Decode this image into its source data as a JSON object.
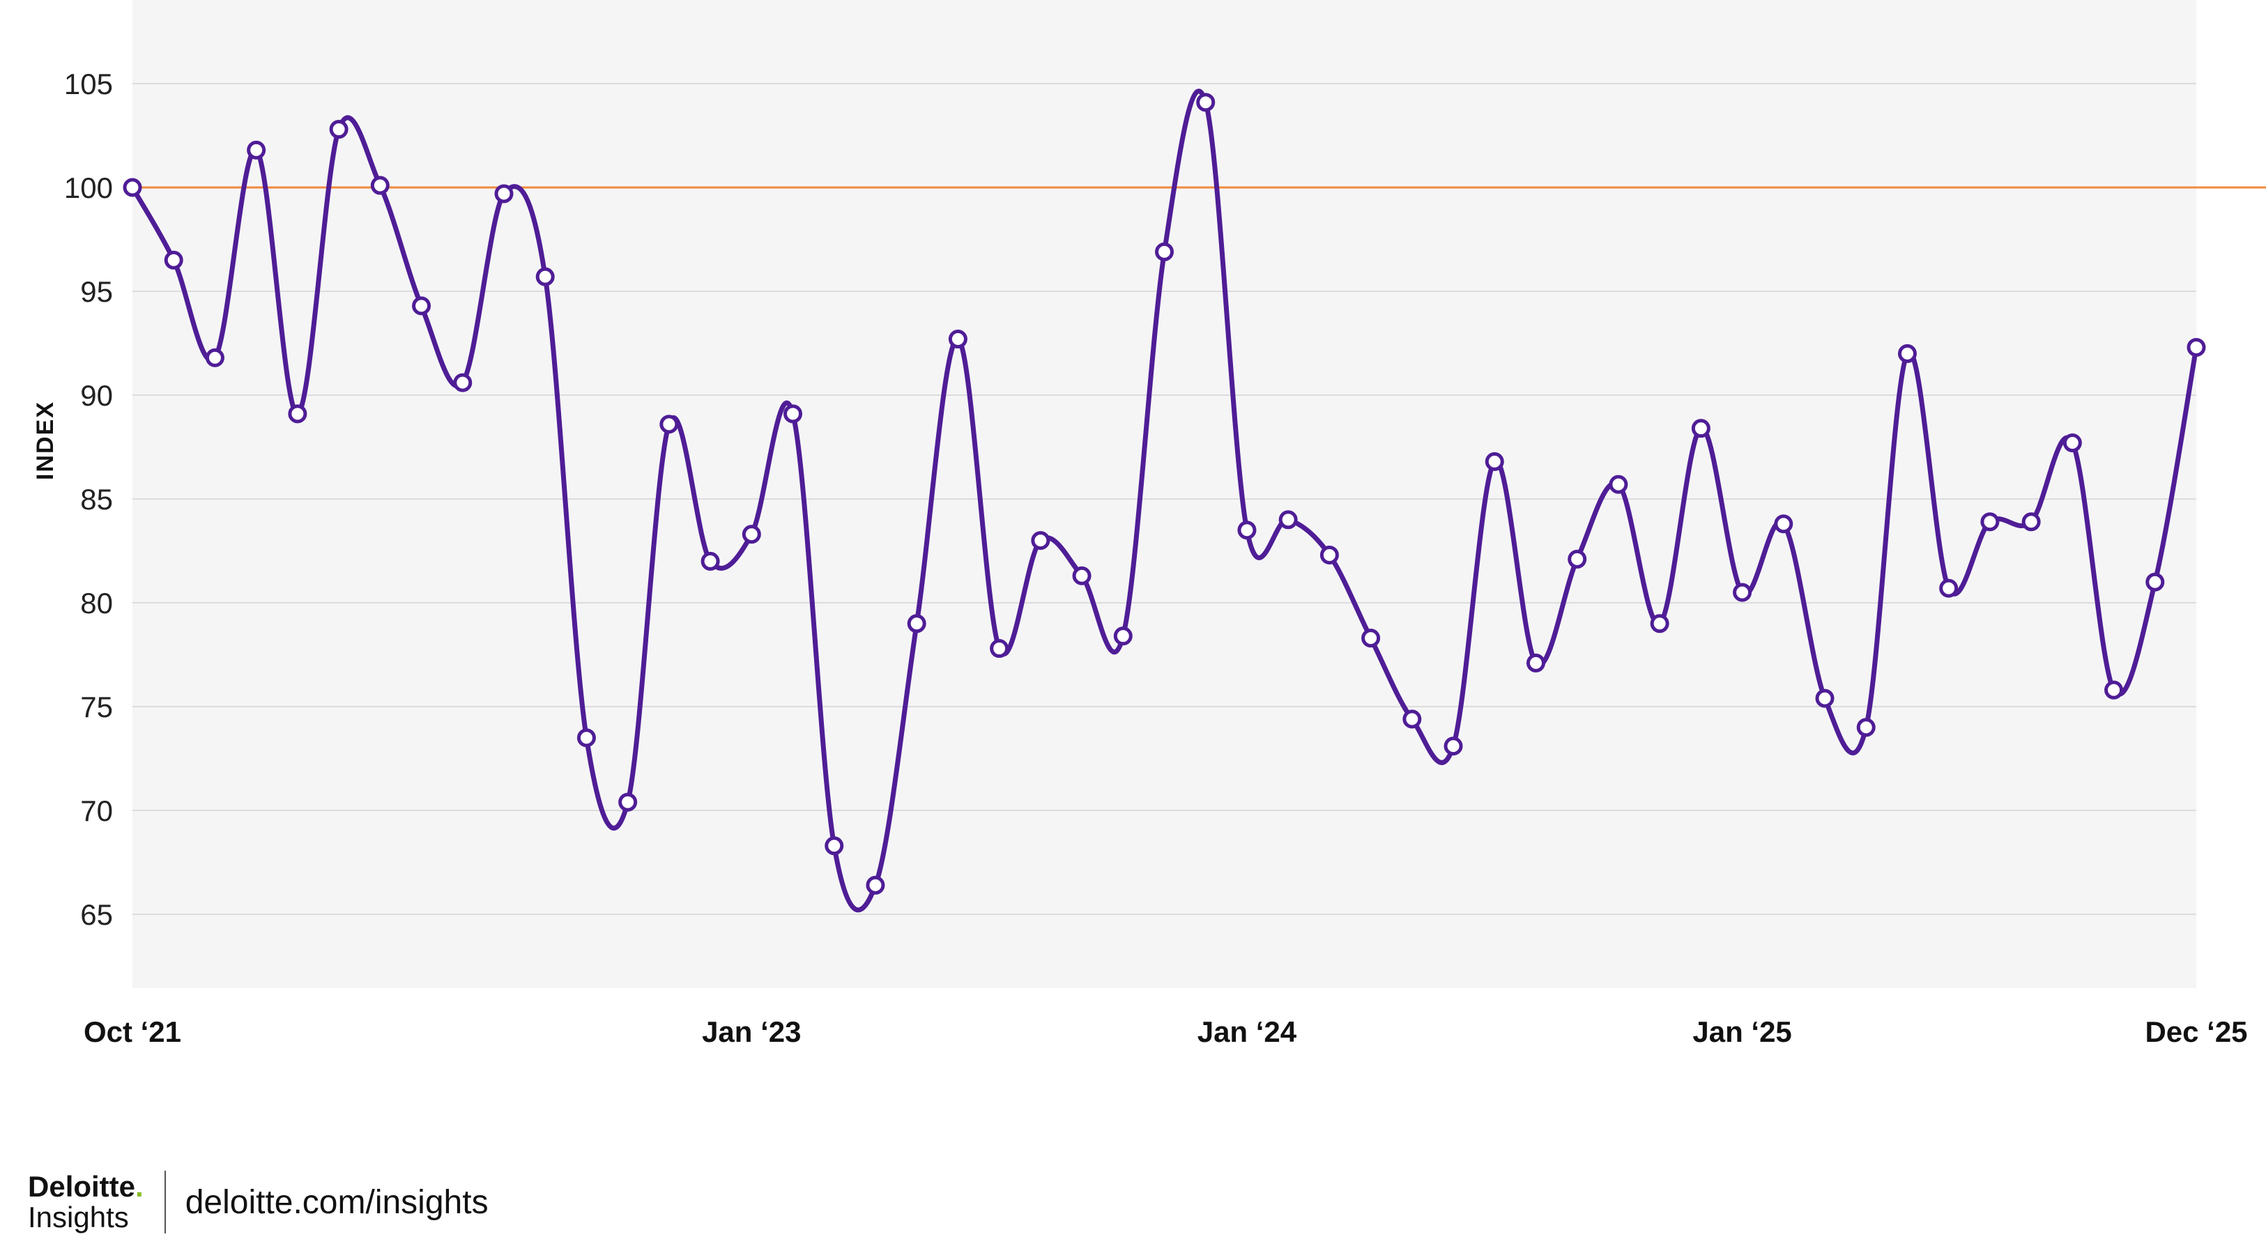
{
  "chart_data": {
    "type": "line",
    "ylabel": "INDEX",
    "ylim": [
      60,
      108
    ],
    "yticks": [
      65,
      70,
      75,
      80,
      85,
      90,
      95,
      100,
      105
    ],
    "xtick_labels": [
      {
        "index": 0,
        "label": "Oct ‘21"
      },
      {
        "index": 15,
        "label": "Jan ‘23"
      },
      {
        "index": 27,
        "label": "Jan ‘24"
      },
      {
        "index": 39,
        "label": "Jan ‘25"
      },
      {
        "index": 50,
        "label": "Dec ‘25"
      }
    ],
    "reference_line": 100,
    "grid": true,
    "series": [
      {
        "values": [
          100.0,
          96.5,
          91.8,
          101.8,
          89.1,
          102.8,
          100.1,
          94.3,
          90.6,
          99.7,
          95.7,
          73.5,
          70.4,
          88.6,
          82.0,
          83.3,
          89.1,
          68.3,
          66.4,
          79.0,
          92.7,
          77.8,
          83.0,
          81.3,
          78.4,
          96.9,
          104.1,
          83.5,
          84.0,
          82.3,
          78.3,
          74.4,
          73.1,
          86.8,
          77.1,
          82.1,
          85.7,
          79.0,
          88.4,
          80.5,
          83.8,
          75.4,
          74.0,
          92.0,
          80.7,
          83.9,
          83.9,
          87.7,
          75.8,
          81.0,
          92.3
        ]
      }
    ],
    "colors": {
      "line": "#4f1d96",
      "reference": "#f08a3e",
      "plot_bg": "#f5f5f6",
      "grid": "#dcdcdc"
    }
  },
  "footer": {
    "brand_name": "Deloitte",
    "brand_dot": ".",
    "brand_sub": "Insights",
    "url": "deloitte.com/insights"
  }
}
